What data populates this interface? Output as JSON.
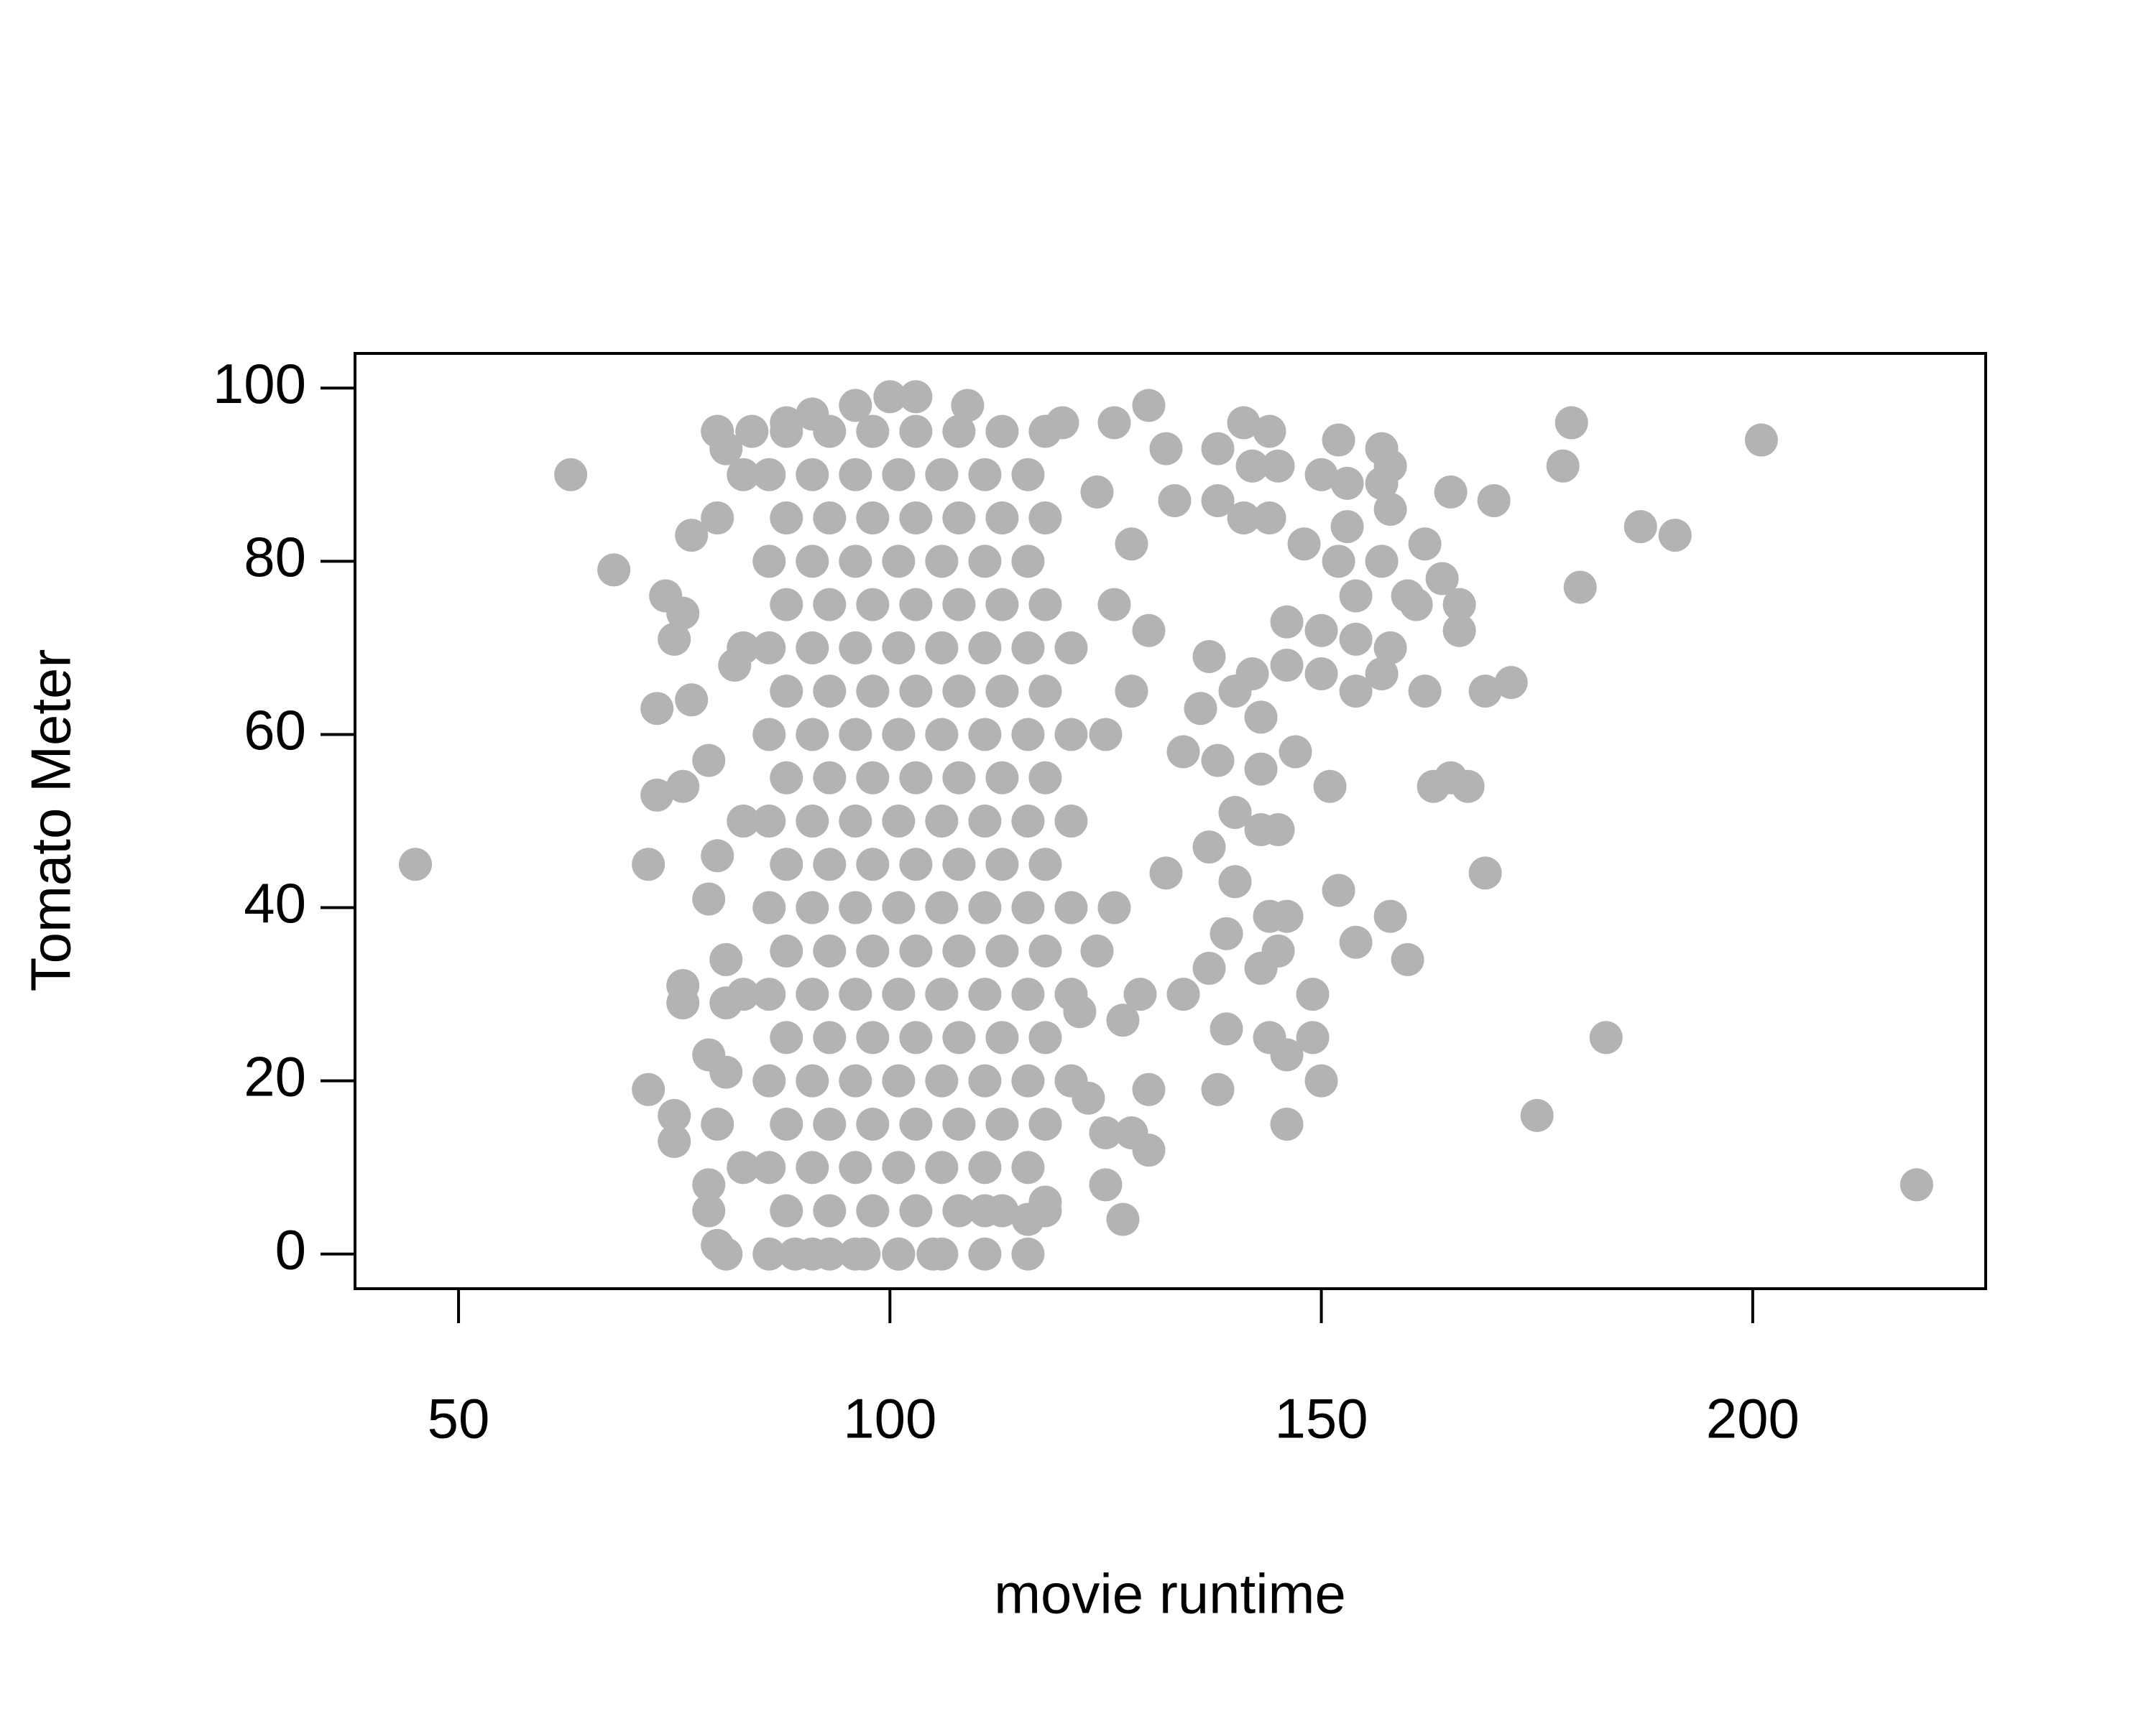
{
  "chart_data": {
    "type": "scatter",
    "xlabel": "movie runtime",
    "ylabel": "Tomato Meter",
    "color": "#b3b3b3",
    "xlim": [
      38,
      227
    ],
    "ylim": [
      -4,
      104
    ],
    "xticks": [
      50,
      100,
      150,
      200
    ],
    "yticks": [
      0,
      20,
      40,
      60,
      80,
      100
    ],
    "x": [
      45,
      63,
      68,
      72,
      72,
      73,
      73,
      74,
      75,
      76,
      76,
      76,
      76,
      77,
      77,
      75,
      75,
      79,
      79,
      79,
      80,
      80,
      81,
      80,
      80,
      79,
      79,
      80,
      81,
      81,
      81,
      82,
      81,
      84,
      88,
      91,
      96,
      100,
      103,
      109,
      120,
      126,
      130,
      132,
      138,
      141,
      144,
      142,
      145,
      152,
      150,
      157,
      158,
      153,
      157,
      158,
      165,
      170,
      178,
      179,
      201,
      187,
      191,
      180,
      133,
      138,
      141,
      144,
      148,
      152,
      153,
      157,
      162,
      164,
      160,
      161,
      166,
      166,
      154,
      150,
      154,
      158,
      146,
      146,
      150,
      157,
      154,
      162,
      169,
      172,
      137,
      142,
      143,
      136,
      140,
      138,
      134,
      143,
      147,
      151,
      163,
      165,
      167,
      140,
      143,
      145,
      137,
      132,
      140,
      152,
      169,
      144,
      146,
      158,
      143,
      145,
      154,
      160,
      139,
      137,
      134,
      129,
      127,
      149,
      139,
      144,
      149,
      146,
      150,
      138,
      130,
      146,
      128,
      125,
      130,
      125,
      127,
      116,
      118,
      111,
      105,
      101,
      97,
      93,
      89,
      175,
      183,
      219,
      124,
      126,
      125,
      128,
      130,
      126,
      128,
      124,
      122,
      121,
      123,
      86,
      91,
      96,
      101,
      106,
      111,
      116,
      88,
      93,
      98,
      103,
      108,
      113,
      118,
      86,
      91,
      96,
      101,
      106,
      111,
      116,
      88,
      93,
      98,
      103,
      108,
      113,
      118,
      86,
      91,
      96,
      101,
      106,
      111,
      116,
      88,
      93,
      98,
      103,
      108,
      113,
      118,
      86,
      91,
      96,
      101,
      106,
      111,
      116,
      88,
      93,
      98,
      103,
      108,
      113,
      118,
      86,
      91,
      96,
      101,
      106,
      111,
      116,
      88,
      93,
      98,
      103,
      108,
      113,
      118,
      86,
      91,
      96,
      101,
      106,
      111,
      116,
      88,
      93,
      98,
      103,
      108,
      113,
      118,
      86,
      91,
      96,
      101,
      106,
      111,
      116,
      88,
      93,
      98,
      103,
      108,
      113,
      118,
      86,
      91,
      96,
      101,
      106,
      111,
      116,
      88,
      93,
      98,
      103,
      108,
      113,
      118,
      86,
      91,
      96,
      101,
      106,
      111,
      116,
      88,
      93,
      98,
      103,
      108,
      113,
      118,
      86,
      91,
      96,
      101,
      106,
      111,
      116,
      88,
      93,
      98,
      103,
      108,
      113,
      118,
      121,
      121,
      121,
      121,
      121,
      83,
      83,
      83,
      83,
      83
    ],
    "values": [
      45,
      90,
      79,
      45,
      19,
      63,
      53,
      76,
      71,
      74,
      54,
      31,
      29,
      83,
      64,
      16,
      13,
      57,
      41,
      23,
      95,
      85,
      93,
      46,
      15,
      8,
      5,
      1,
      0,
      29,
      34,
      68,
      21,
      95,
      96,
      97,
      98,
      99,
      99,
      98,
      96,
      96,
      98,
      93,
      93,
      96,
      95,
      91,
      91,
      94,
      90,
      93,
      91,
      89,
      89,
      86,
      88,
      87,
      91,
      96,
      94,
      84,
      83,
      77,
      87,
      87,
      85,
      85,
      82,
      80,
      84,
      80,
      82,
      78,
      76,
      75,
      75,
      72,
      76,
      72,
      71,
      70,
      73,
      68,
      67,
      67,
      65,
      65,
      65,
      66,
      69,
      67,
      62,
      63,
      65,
      57,
      58,
      56,
      58,
      54,
      54,
      55,
      54,
      51,
      49,
      49,
      47,
      44,
      43,
      42,
      44,
      39,
      39,
      39,
      33,
      35,
      36,
      34,
      37,
      33,
      30,
      30,
      27,
      30,
      26,
      25,
      25,
      23,
      20,
      19,
      19,
      15,
      14,
      14,
      12,
      8,
      4,
      4,
      6,
      5,
      0,
      0,
      0,
      0,
      0,
      16,
      25,
      8,
      35,
      40,
      60,
      65,
      72,
      75,
      82,
      88,
      28,
      20,
      18,
      0,
      0,
      0,
      0,
      0,
      0,
      0,
      5,
      5,
      5,
      5,
      5,
      5,
      5,
      10,
      10,
      10,
      10,
      10,
      10,
      10,
      15,
      15,
      15,
      15,
      15,
      15,
      15,
      20,
      20,
      20,
      20,
      20,
      20,
      20,
      25,
      25,
      25,
      25,
      25,
      25,
      25,
      30,
      30,
      30,
      30,
      30,
      30,
      30,
      35,
      35,
      35,
      35,
      35,
      35,
      35,
      40,
      40,
      40,
      40,
      40,
      40,
      40,
      45,
      45,
      45,
      45,
      45,
      45,
      45,
      50,
      50,
      50,
      50,
      50,
      50,
      50,
      55,
      55,
      55,
      55,
      55,
      55,
      55,
      60,
      60,
      60,
      60,
      60,
      60,
      60,
      65,
      65,
      65,
      65,
      65,
      65,
      65,
      70,
      70,
      70,
      70,
      70,
      70,
      70,
      75,
      75,
      75,
      75,
      75,
      75,
      75,
      80,
      80,
      80,
      80,
      80,
      80,
      80,
      85,
      85,
      85,
      85,
      85,
      85,
      85,
      90,
      90,
      90,
      90,
      90,
      90,
      90,
      95,
      95,
      95,
      95,
      95,
      95,
      95,
      30,
      40,
      50,
      60,
      70,
      10,
      30,
      50,
      70,
      90
    ]
  }
}
